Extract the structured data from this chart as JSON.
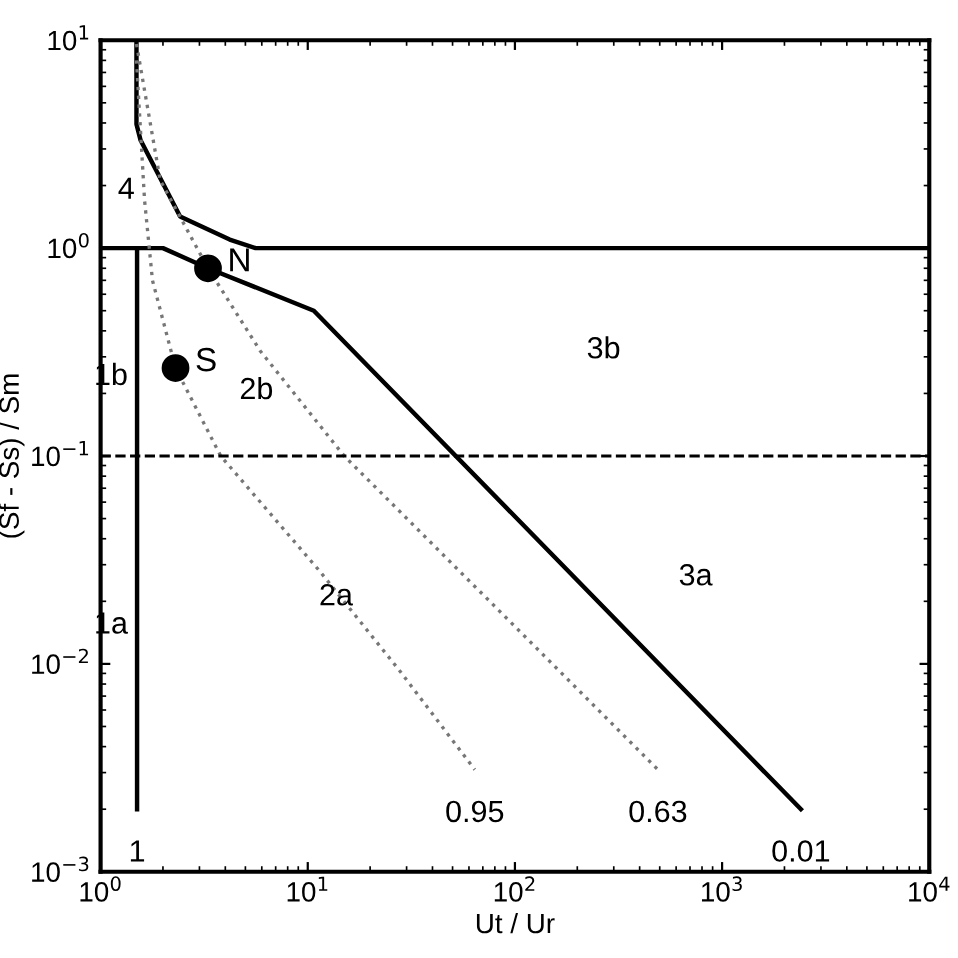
{
  "chart_data": {
    "type": "line",
    "xlabel": "Ut / Ur",
    "ylabel": "(Sf - Ss) / Sm",
    "log": "xy",
    "grid": false,
    "legend": false,
    "xlim": [
      1,
      10000
    ],
    "ylim": [
      0.001,
      10
    ],
    "xticks": [
      {
        "value": 1,
        "label": "10$^{0}$"
      },
      {
        "value": 10,
        "label": "10$^{1}$"
      },
      {
        "value": 100,
        "label": "10$^{2}$"
      },
      {
        "value": 1000,
        "label": "10$^{3}$"
      },
      {
        "value": 10000,
        "label": "10$^{4}$"
      }
    ],
    "yticks": [
      {
        "value": 0.001,
        "label": "10$^{−3}$"
      },
      {
        "value": 0.01,
        "label": "10$^{−2}$"
      },
      {
        "value": 0.1,
        "label": "10$^{−1}$"
      },
      {
        "value": 1,
        "label": "10$^{0}$"
      },
      {
        "value": 10,
        "label": "10$^{1}$"
      }
    ],
    "series": [
      {
        "name": "1",
        "color": "#000000",
        "line_style": "solid",
        "x": [
          1.5,
          1.5
        ],
        "values": [
          1,
          0.002
        ]
      },
      {
        "color": "#000000",
        "line_style": "solid",
        "x": [
          1.49,
          1.49,
          1.56,
          2.42,
          4.2,
          5.6,
          10000
        ],
        "values": [
          9.6,
          3.95,
          3.3,
          1.42,
          1.1,
          1.0,
          1.0
        ]
      },
      {
        "name": "0.01",
        "color": "#000000",
        "line_style": "solid",
        "x": [
          1,
          2.0,
          3.3,
          10.7,
          2400
        ],
        "values": [
          1,
          1,
          0.8,
          0.5,
          0.002
        ]
      },
      {
        "name": "0.95",
        "color": "#777777",
        "line_style": "dotted",
        "x": [
          1.49,
          1.63,
          1.78,
          2.3,
          3.8,
          11.4,
          27.7,
          64
        ],
        "values": [
          8.0,
          1.7,
          0.7,
          0.265,
          0.1,
          0.028,
          0.0093,
          0.0031
        ]
      },
      {
        "name": "0.63",
        "color": "#777777",
        "line_style": "dotted",
        "x": [
          1.49,
          1.94,
          3.3,
          5.9,
          15,
          84,
          490
        ],
        "values": [
          9.6,
          2.12,
          0.8,
          0.32,
          0.1,
          0.018,
          0.0031
        ]
      },
      {
        "type": "scatter",
        "name": "N",
        "color": "#000000",
        "marker": "circle",
        "x": [
          3.3
        ],
        "values": [
          0.8
        ]
      },
      {
        "type": "scatter",
        "name": "S",
        "color": "#000000",
        "marker": "circle",
        "x": [
          2.3
        ],
        "values": [
          0.265
        ]
      }
    ],
    "ref_lines": [
      {
        "axis": "y",
        "value": 0.1,
        "color": "#000000",
        "line_style": "dashed"
      }
    ],
    "annotations": [
      "4",
      "1b",
      "2b",
      "3b",
      "3a",
      "2a",
      "1a"
    ]
  }
}
